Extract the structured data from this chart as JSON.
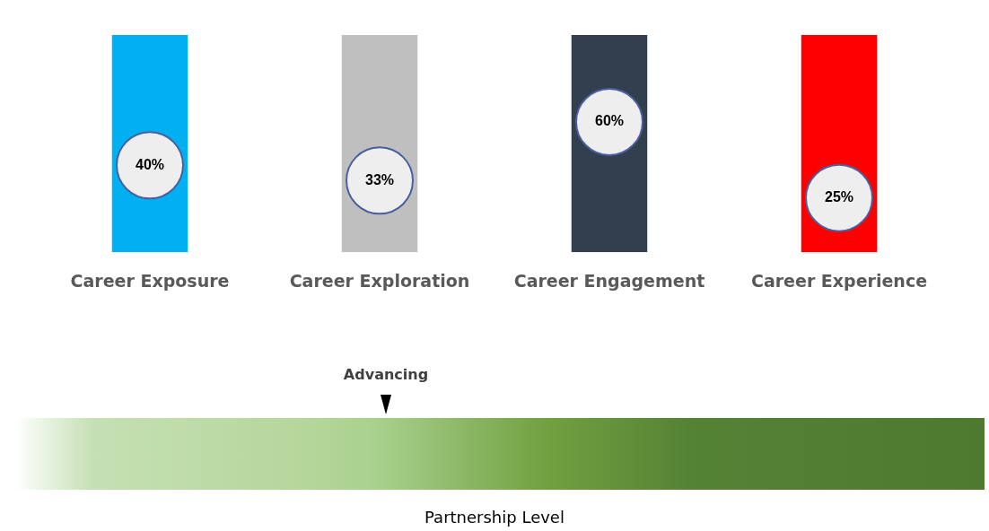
{
  "chart_data": {
    "type": "bar",
    "categories": [
      "Career Exposure",
      "Career Exploration",
      "Career Engagement",
      "Career Experience"
    ],
    "series": [
      {
        "type": "bar",
        "colors": [
          "#00b0f0",
          "#bfbfbf",
          "#323f4f",
          "#ff0000"
        ],
        "values": [
          100,
          100,
          100,
          100
        ]
      },
      {
        "type": "scatter",
        "color": "#eeeeee",
        "x": [
          "Career Exposure",
          "Career Exploration",
          "Career Engagement",
          "Career Experience"
        ],
        "values": [
          40,
          33,
          60,
          25
        ],
        "value_labels": [
          "40%",
          "33%",
          "60%",
          "25%"
        ]
      }
    ],
    "ylim": [
      0,
      100
    ],
    "tick_labels": "x",
    "grid": false,
    "legend": false,
    "marker": "circle",
    "annotations": [
      "Advancing",
      "Partnership Level"
    ]
  }
}
